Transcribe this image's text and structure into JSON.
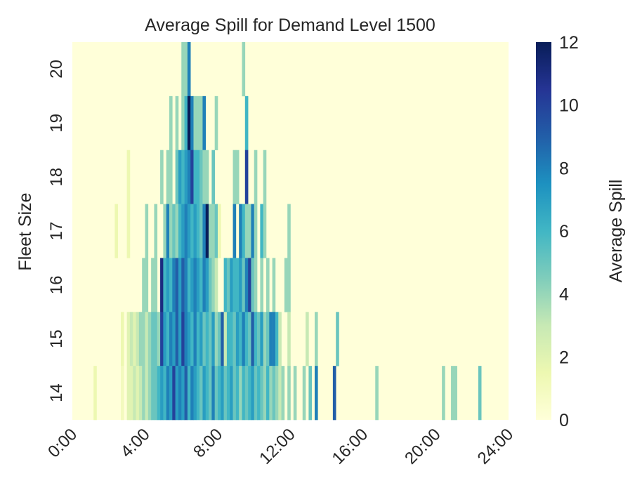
{
  "chart_data": {
    "type": "heatmap",
    "title": "Average Spill for Demand Level 1500",
    "xlabel": "",
    "ylabel": "Fleet Size",
    "colorbar_label": "Average Spill",
    "colormap": "YlGnBu",
    "colormap_stops": [
      "#ffffd9",
      "#edf8b1",
      "#c7e9b4",
      "#7fcdbb",
      "#41b6c4",
      "#1d91c0",
      "#225ea8",
      "#253494",
      "#081d58"
    ],
    "value_range": [
      0,
      12
    ],
    "colorbar_ticks": [
      "0",
      "2",
      "4",
      "6",
      "8",
      "10",
      "12"
    ],
    "x_tick_labels": [
      "0:00",
      "4:00",
      "8:00",
      "12:00",
      "16:00",
      "20:00",
      "24:00"
    ],
    "x_bin_minutes": 10,
    "y_tick_labels": [
      "20",
      "19",
      "18",
      "17",
      "16",
      "15",
      "14"
    ],
    "grid": false,
    "rows": [
      {
        "fleet_size": "20",
        "cells": {
          "6:00": 4,
          "6:10": 4,
          "6:20": 8,
          "9:20": 4
        }
      },
      {
        "fleet_size": "19",
        "cells": {
          "5:20": 4,
          "5:40": 4,
          "6:00": 4,
          "6:10": 6,
          "6:20": 12,
          "6:30": 8,
          "6:40": 4,
          "6:50": 4,
          "7:00": 4,
          "7:10": 8,
          "7:50": 4,
          "9:30": 6
        }
      },
      {
        "fleet_size": "18",
        "cells": {
          "3:00": 1.5,
          "4:50": 4,
          "5:10": 4,
          "5:20": 4,
          "5:40": 5,
          "5:50": 7,
          "6:00": 6,
          "6:10": 7,
          "6:20": 8,
          "6:30": 10,
          "6:40": 6,
          "6:50": 6,
          "7:00": 5,
          "7:10": 4,
          "7:20": 4,
          "7:40": 5,
          "8:50": 4,
          "9:00": 4,
          "9:30": 10,
          "10:00": 4,
          "10:30": 4
        }
      },
      {
        "fleet_size": "17",
        "cells": {
          "2:20": 1.5,
          "3:00": 1.5,
          "4:00": 4,
          "4:30": 4,
          "5:00": 4,
          "5:10": 8,
          "5:20": 4,
          "5:30": 5,
          "5:40": 4,
          "5:50": 6,
          "6:00": 7,
          "6:10": 8,
          "6:20": 7,
          "6:30": 6,
          "6:40": 7,
          "6:50": 6,
          "7:00": 5,
          "7:10": 8,
          "7:20": 12,
          "7:30": 4,
          "7:40": 4,
          "7:50": 5,
          "8:00": 1.5,
          "8:50": 8,
          "9:10": 8,
          "9:20": 6,
          "9:30": 4,
          "9:40": 4,
          "9:50": 8,
          "10:00": 4,
          "10:20": 6,
          "10:30": 4,
          "11:50": 4
        }
      },
      {
        "fleet_size": "16",
        "cells": {
          "3:50": 4,
          "4:00": 4,
          "4:20": 4,
          "4:30": 4,
          "4:50": 11,
          "5:00": 6,
          "5:10": 7,
          "5:20": 6,
          "5:30": 8,
          "5:40": 9,
          "5:50": 7,
          "6:00": 9,
          "6:10": 8,
          "6:20": 6,
          "6:30": 7,
          "6:40": 8,
          "6:50": 7,
          "7:00": 6,
          "7:10": 8,
          "7:20": 7,
          "7:30": 5,
          "7:40": 4,
          "7:50": 3,
          "8:20": 6,
          "8:30": 5,
          "8:40": 7,
          "8:50": 6,
          "9:00": 6,
          "9:10": 7,
          "9:20": 5,
          "9:30": 8,
          "9:40": 10,
          "9:50": 5,
          "10:00": 4,
          "10:20": 4,
          "10:40": 4,
          "11:00": 4,
          "11:40": 4,
          "11:50": 4
        }
      },
      {
        "fleet_size": "15",
        "cells": {
          "2:40": 1.5,
          "3:00": 2,
          "3:10": 3,
          "3:20": 2,
          "3:30": 3,
          "3:40": 4,
          "3:50": 4,
          "4:00": 3,
          "4:10": 4,
          "4:20": 5,
          "4:30": 5,
          "4:40": 4,
          "4:50": 10,
          "5:00": 7,
          "5:10": 6,
          "5:20": 8,
          "5:30": 7,
          "5:40": 9,
          "5:50": 7,
          "6:00": 10,
          "6:10": 8,
          "6:20": 7,
          "6:30": 6,
          "6:40": 8,
          "6:50": 6,
          "7:00": 7,
          "7:10": 5,
          "7:20": 6,
          "7:30": 5,
          "7:40": 7,
          "7:50": 4,
          "8:00": 5,
          "8:10": 9,
          "8:20": 3,
          "8:30": 6,
          "8:40": 6,
          "8:50": 5,
          "9:00": 7,
          "9:10": 6,
          "9:20": 8,
          "9:30": 6,
          "9:40": 5,
          "9:50": 9,
          "10:00": 6,
          "10:10": 5,
          "10:20": 7,
          "10:30": 4,
          "10:40": 5,
          "10:50": 8,
          "11:00": 8,
          "11:10": 6,
          "11:20": 3,
          "11:50": 3,
          "12:50": 3,
          "13:20": 4,
          "14:30": 5
        }
      },
      {
        "fleet_size": "14",
        "cells": {
          "1:10": 1.5,
          "2:40": 1,
          "3:00": 2,
          "3:10": 2,
          "3:20": 3,
          "3:30": 2,
          "3:40": 3,
          "3:50": 4,
          "4:00": 3,
          "4:10": 4,
          "4:20": 5,
          "4:30": 5,
          "4:40": 6,
          "4:50": 7,
          "5:00": 6,
          "5:10": 8,
          "5:20": 7,
          "5:30": 10,
          "5:40": 7,
          "5:50": 8,
          "6:00": 7,
          "6:10": 9,
          "6:20": 6,
          "6:30": 8,
          "6:40": 7,
          "6:50": 6,
          "7:00": 5,
          "7:10": 7,
          "7:20": 6,
          "7:30": 5,
          "7:40": 8,
          "7:50": 5,
          "8:00": 6,
          "8:10": 7,
          "8:20": 5,
          "8:30": 6,
          "8:40": 7,
          "8:50": 5,
          "9:00": 6,
          "9:10": 4,
          "9:20": 6,
          "9:30": 5,
          "9:40": 6,
          "9:50": 7,
          "10:00": 5,
          "10:10": 6,
          "10:20": 5,
          "10:30": 4,
          "10:40": 6,
          "10:50": 4,
          "11:00": 5,
          "11:10": 4,
          "11:20": 3,
          "11:30": 4,
          "11:50": 4,
          "12:10": 4,
          "12:40": 4,
          "13:00": 5,
          "13:20": 8,
          "14:20": 9,
          "16:40": 4,
          "20:20": 4,
          "20:50": 4,
          "21:00": 4,
          "22:20": 5
        }
      }
    ]
  }
}
